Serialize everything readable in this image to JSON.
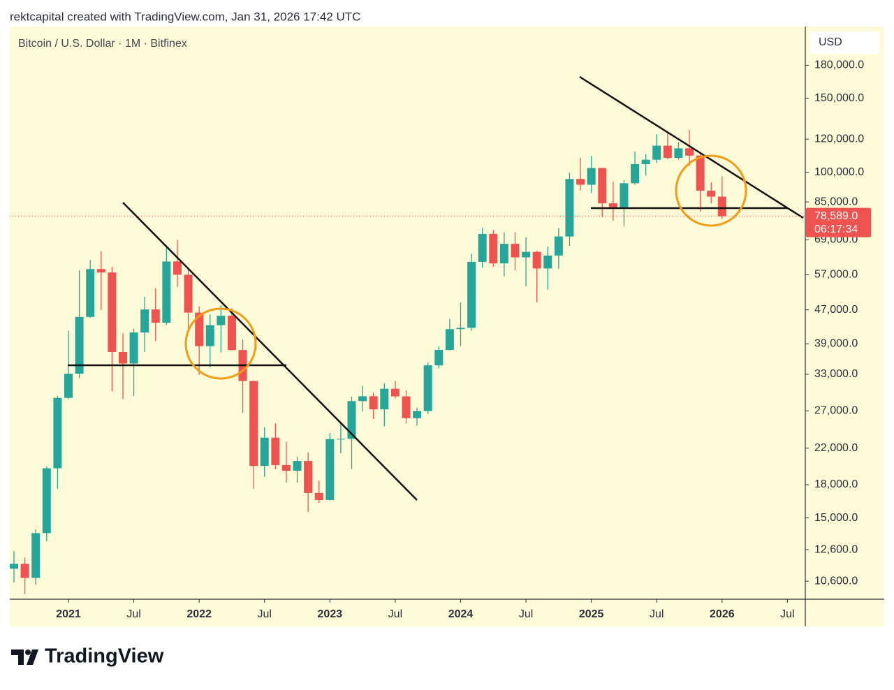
{
  "header": "rektcapital created with TradingView.com, Jan 31, 2026 17:42 UTC",
  "footer": {
    "logo": "TradingView"
  },
  "chart_data": {
    "type": "candlestick",
    "title": "Bitcoin / U.S. Dollar · 1M · Bitfinex",
    "y_unit": "USD",
    "log_scale": true,
    "up_color": "#26a69a",
    "down_color": "#ef5350",
    "x": [
      "2020-08",
      "2020-09",
      "2020-10",
      "2020-11",
      "2020-12",
      "2021-01",
      "2021-02",
      "2021-03",
      "2021-04",
      "2021-05",
      "2021-06",
      "2021-07",
      "2021-08",
      "2021-09",
      "2021-10",
      "2021-11",
      "2021-12",
      "2022-01",
      "2022-02",
      "2022-03",
      "2022-04",
      "2022-05",
      "2022-06",
      "2022-07",
      "2022-08",
      "2022-09",
      "2022-10",
      "2022-11",
      "2022-12",
      "2023-01",
      "2023-02",
      "2023-03",
      "2023-04",
      "2023-05",
      "2023-06",
      "2023-07",
      "2023-08",
      "2023-09",
      "2023-10",
      "2023-11",
      "2023-12",
      "2024-01",
      "2024-02",
      "2024-03",
      "2024-04",
      "2024-05",
      "2024-06",
      "2024-07",
      "2024-08",
      "2024-09",
      "2024-10",
      "2024-11",
      "2024-12",
      "2025-01",
      "2025-02",
      "2025-03",
      "2025-04",
      "2025-05",
      "2025-06",
      "2025-07",
      "2025-08",
      "2025-09",
      "2025-10",
      "2025-11",
      "2025-12",
      "2026-01"
    ],
    "open": [
      11350,
      11660,
      10790,
      13800,
      19700,
      28990,
      33100,
      45200,
      58800,
      57700,
      37300,
      35000,
      41500,
      47100,
      43800,
      61300,
      57000,
      46300,
      38500,
      43200,
      45500,
      37700,
      31800,
      19950,
      23300,
      20050,
      19430,
      20500,
      17200,
      16550,
      23130,
      23150,
      28480,
      29250,
      27220,
      30480,
      29230,
      25940,
      26970,
      34660,
      37720,
      42280,
      42580,
      61170,
      71300,
      60660,
      67530,
      62700,
      64620,
      58980,
      63330,
      70300,
      96400,
      93400,
      102400,
      84350,
      82550,
      94200,
      104600,
      107150,
      115750,
      108250,
      114050,
      109600,
      90400,
      87500
    ],
    "high": [
      12480,
      12070,
      14100,
      19900,
      29300,
      41950,
      58350,
      61800,
      64900,
      59500,
      41300,
      42400,
      50500,
      52900,
      67000,
      69000,
      59100,
      47900,
      45800,
      48200,
      47400,
      40000,
      31900,
      24700,
      25200,
      22800,
      21000,
      21500,
      18400,
      23900,
      25250,
      29200,
      31000,
      29850,
      31400,
      31800,
      30200,
      27500,
      35200,
      38400,
      44700,
      48950,
      64000,
      73800,
      72800,
      71950,
      72000,
      70000,
      65000,
      66500,
      73600,
      99800,
      108300,
      109400,
      102500,
      95000,
      95800,
      112000,
      110500,
      123200,
      124500,
      117900,
      126200,
      110600,
      94600,
      97900
    ],
    "low": [
      10530,
      9880,
      10400,
      13200,
      17600,
      28800,
      32300,
      45000,
      47000,
      30000,
      28800,
      29300,
      37300,
      39600,
      43300,
      53300,
      42000,
      32900,
      34300,
      37200,
      37600,
      26700,
      17600,
      18800,
      19600,
      18200,
      18200,
      15500,
      16300,
      16500,
      21400,
      19600,
      26900,
      25800,
      24800,
      28900,
      25200,
      24900,
      26550,
      34100,
      37600,
      38500,
      41900,
      59300,
      59600,
      56500,
      58400,
      53500,
      49000,
      52550,
      58900,
      66800,
      90500,
      89200,
      78200,
      76600,
      74400,
      93400,
      98200,
      105300,
      107300,
      107300,
      103500,
      80600,
      84400,
      77500
    ],
    "close": [
      11660,
      10790,
      13800,
      19700,
      28990,
      33100,
      45200,
      58800,
      57700,
      37300,
      35000,
      41500,
      47100,
      43800,
      61300,
      57000,
      46300,
      38500,
      43200,
      45500,
      37700,
      31800,
      19950,
      23300,
      20050,
      19430,
      20500,
      17200,
      16550,
      23130,
      23150,
      28480,
      29250,
      27220,
      30480,
      29230,
      25940,
      26970,
      34660,
      37720,
      42280,
      42580,
      61170,
      71300,
      60660,
      67530,
      62700,
      64620,
      58980,
      63330,
      70300,
      96400,
      93400,
      102400,
      84350,
      82550,
      94200,
      104600,
      107150,
      115750,
      108250,
      114050,
      109600,
      90400,
      87500,
      78589
    ],
    "last_price": {
      "value": 78589,
      "label": "78,589.0"
    },
    "countdown": "06:17:34",
    "xlim": [
      "2020-08",
      "2026-08"
    ],
    "xticks": [
      {
        "value": "2021-01",
        "label": "2021"
      },
      {
        "value": "2021-07",
        "label": "Jul"
      },
      {
        "value": "2022-01",
        "label": "2022"
      },
      {
        "value": "2022-07",
        "label": "Jul"
      },
      {
        "value": "2023-01",
        "label": "2023"
      },
      {
        "value": "2023-07",
        "label": "Jul"
      },
      {
        "value": "2024-01",
        "label": "2024"
      },
      {
        "value": "2024-07",
        "label": "Jul"
      },
      {
        "value": "2025-01",
        "label": "2025"
      },
      {
        "value": "2025-07",
        "label": "Jul"
      },
      {
        "value": "2026-01",
        "label": "2026"
      },
      {
        "value": "2026-07",
        "label": "Jul"
      }
    ],
    "ylim": [
      9600,
      222600
    ],
    "yticks": [
      {
        "value": 10600,
        "label": "10,600.0"
      },
      {
        "value": 12600,
        "label": "12,600.0"
      },
      {
        "value": 15000,
        "label": "15,000.0"
      },
      {
        "value": 18000,
        "label": "18,000.0"
      },
      {
        "value": 22000,
        "label": "22,000.0"
      },
      {
        "value": 27000,
        "label": "27,000.0"
      },
      {
        "value": 33000,
        "label": "33,000.0"
      },
      {
        "value": 39000,
        "label": "39,000.0"
      },
      {
        "value": 47000,
        "label": "47,000.0"
      },
      {
        "value": 57000,
        "label": "57,000.0"
      },
      {
        "value": 69000,
        "label": "69,000.0"
      },
      {
        "value": 85000,
        "label": "85,000.0"
      },
      {
        "value": 100000,
        "label": "100,000.0"
      },
      {
        "value": 120000,
        "label": "120,000.0"
      },
      {
        "value": 150000,
        "label": "150,000.0"
      },
      {
        "value": 180000,
        "label": "180,000.0"
      }
    ]
  }
}
